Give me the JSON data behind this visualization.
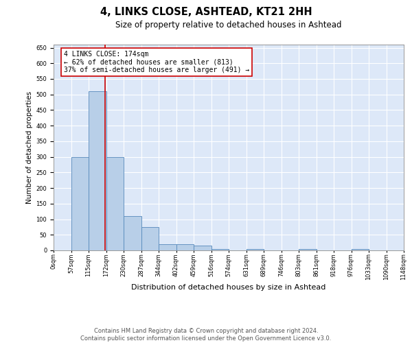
{
  "title1": "4, LINKS CLOSE, ASHTEAD, KT21 2HH",
  "title2": "Size of property relative to detached houses in Ashtead",
  "xlabel": "Distribution of detached houses by size in Ashtead",
  "ylabel": "Number of detached properties",
  "bar_heights": [
    0,
    300,
    510,
    300,
    110,
    75,
    20,
    20,
    15,
    5,
    0,
    5,
    0,
    0,
    5,
    0,
    0,
    5,
    0,
    0
  ],
  "tick_labels": [
    "0sqm",
    "57sqm",
    "115sqm",
    "172sqm",
    "230sqm",
    "287sqm",
    "344sqm",
    "402sqm",
    "459sqm",
    "516sqm",
    "574sqm",
    "631sqm",
    "689sqm",
    "746sqm",
    "803sqm",
    "861sqm",
    "918sqm",
    "976sqm",
    "1033sqm",
    "1090sqm",
    "1148sqm"
  ],
  "bar_color": "#b8cfe8",
  "bar_edge_color": "#5588bb",
  "property_line_x": 2.93,
  "property_line_color": "#cc0000",
  "annotation_text": "4 LINKS CLOSE: 174sqm\n← 62% of detached houses are smaller (813)\n37% of semi-detached houses are larger (491) →",
  "ylim": [
    0,
    660
  ],
  "yticks": [
    0,
    50,
    100,
    150,
    200,
    250,
    300,
    350,
    400,
    450,
    500,
    550,
    600,
    650
  ],
  "background_color": "#dde8f8",
  "footer_text": "Contains HM Land Registry data © Crown copyright and database right 2024.\nContains public sector information licensed under the Open Government Licence v3.0.",
  "title1_fontsize": 10.5,
  "title2_fontsize": 8.5,
  "xlabel_fontsize": 8,
  "ylabel_fontsize": 7.5,
  "tick_fontsize": 6,
  "annotation_fontsize": 7,
  "footer_fontsize": 6
}
